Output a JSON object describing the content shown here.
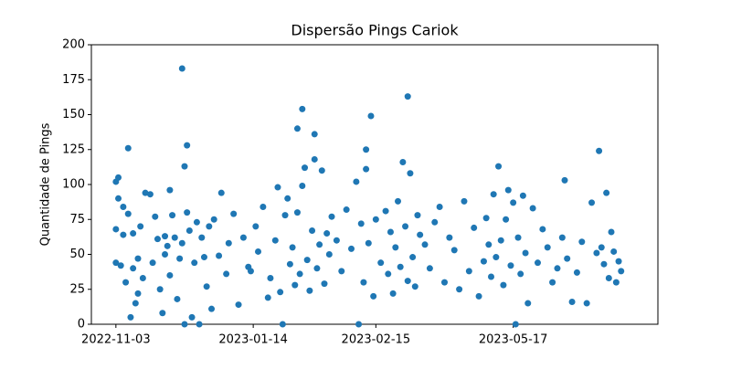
{
  "chart_data": {
    "type": "scatter",
    "title": "Dispersão Pings Cariok",
    "ylabel": "Quantidade de Pings",
    "color": "#1f77b4",
    "x": [
      0,
      0,
      0,
      1,
      1,
      2,
      3,
      3,
      4,
      5,
      5,
      6,
      7,
      7,
      8,
      9,
      9,
      10,
      11,
      12,
      14,
      15,
      16,
      17,
      18,
      19,
      20,
      20,
      21,
      22,
      22,
      23,
      24,
      25,
      26,
      27,
      27,
      28,
      28,
      29,
      29,
      30,
      31,
      32,
      33,
      34,
      35,
      36,
      37,
      38,
      39,
      40,
      42,
      43,
      45,
      46,
      48,
      50,
      52,
      54,
      55,
      57,
      58,
      60,
      62,
      63,
      65,
      66,
      67,
      68,
      69,
      70,
      71,
      72,
      73,
      74,
      74,
      75,
      76,
      76,
      77,
      78,
      79,
      80,
      81,
      81,
      82,
      83,
      84,
      85,
      86,
      87,
      88,
      90,
      92,
      94,
      96,
      98,
      99,
      100,
      101,
      102,
      102,
      103,
      104,
      105,
      106,
      108,
      110,
      111,
      112,
      113,
      114,
      115,
      116,
      117,
      118,
      119,
      119,
      120,
      121,
      122,
      123,
      124,
      126,
      128,
      130,
      132,
      134,
      136,
      138,
      140,
      142,
      144,
      146,
      148,
      150,
      151,
      152,
      153,
      154,
      155,
      156,
      157,
      158,
      159,
      160,
      161,
      162,
      163,
      164,
      165,
      166,
      167,
      168,
      170,
      172,
      174,
      176,
      178,
      180,
      182,
      183,
      184,
      186,
      188,
      190,
      192,
      194,
      196,
      197,
      198,
      199,
      200,
      201,
      202,
      203,
      204,
      205,
      206
    ],
    "values": [
      102,
      68,
      44,
      105,
      90,
      42,
      84,
      64,
      30,
      126,
      79,
      5,
      65,
      40,
      15,
      47,
      22,
      70,
      33,
      94,
      93,
      44,
      77,
      61,
      25,
      8,
      63,
      50,
      56,
      96,
      35,
      78,
      62,
      18,
      47,
      183,
      58,
      0,
      113,
      128,
      80,
      67,
      5,
      44,
      73,
      0,
      62,
      48,
      27,
      70,
      11,
      75,
      49,
      94,
      36,
      58,
      79,
      14,
      62,
      41,
      38,
      70,
      52,
      84,
      19,
      33,
      60,
      98,
      23,
      0,
      78,
      90,
      43,
      55,
      28,
      140,
      80,
      36,
      154,
      99,
      112,
      46,
      24,
      67,
      136,
      118,
      40,
      57,
      110,
      29,
      65,
      50,
      77,
      60,
      38,
      82,
      54,
      102,
      0,
      72,
      30,
      125,
      111,
      58,
      149,
      20,
      75,
      44,
      81,
      36,
      66,
      22,
      55,
      88,
      41,
      116,
      70,
      163,
      31,
      108,
      48,
      27,
      78,
      64,
      57,
      40,
      73,
      84,
      30,
      62,
      53,
      25,
      88,
      38,
      69,
      20,
      45,
      76,
      57,
      34,
      93,
      48,
      113,
      60,
      28,
      75,
      96,
      42,
      87,
      0,
      62,
      36,
      92,
      51,
      15,
      83,
      44,
      68,
      55,
      30,
      40,
      62,
      103,
      47,
      16,
      37,
      59,
      15,
      87,
      51,
      124,
      55,
      43,
      94,
      33,
      66,
      52,
      30,
      45,
      38
    ],
    "xlim": [
      -10,
      221
    ],
    "xticks": [
      {
        "value": 0,
        "label": "2022-11-03"
      },
      {
        "value": 56,
        "label": "2023-01-14"
      },
      {
        "value": 106,
        "label": "2023-02-15"
      },
      {
        "value": 162,
        "label": "2023-05-17"
      }
    ],
    "ylim": [
      0,
      200
    ],
    "yticks": [
      0,
      25,
      50,
      75,
      100,
      125,
      150,
      175,
      200
    ]
  }
}
